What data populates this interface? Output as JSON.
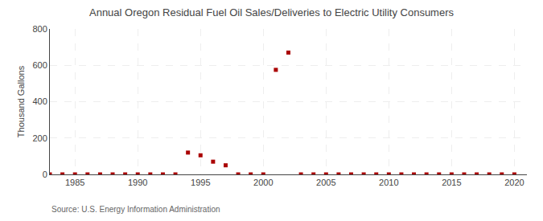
{
  "chart_data": {
    "type": "scatter",
    "title": "Annual Oregon Residual Fuel Oil Sales/Deliveries to Electric Utility Consumers",
    "ylabel": "Thousand Gallons",
    "source": "Source: U.S. Energy Information Administration",
    "x": [
      1983,
      1984,
      1985,
      1986,
      1987,
      1988,
      1989,
      1990,
      1991,
      1992,
      1993,
      1994,
      1995,
      1996,
      1997,
      1998,
      1999,
      2000,
      2001,
      2002,
      2003,
      2004,
      2005,
      2006,
      2007,
      2008,
      2009,
      2010,
      2011,
      2012,
      2013,
      2014,
      2015,
      2016,
      2017,
      2018,
      2019,
      2020
    ],
    "values": [
      0,
      0,
      0,
      0,
      0,
      0,
      0,
      0,
      0,
      0,
      0,
      120,
      105,
      70,
      50,
      0,
      0,
      0,
      575,
      670,
      0,
      0,
      0,
      0,
      0,
      0,
      0,
      0,
      0,
      0,
      0,
      0,
      0,
      0,
      0,
      0,
      0,
      0
    ],
    "color": "#aa0000",
    "marker": "square",
    "xlim": [
      1983,
      2021
    ],
    "xticks": [
      1985,
      1990,
      1995,
      2000,
      2005,
      2010,
      2015,
      2020
    ],
    "ylim": [
      0,
      800
    ],
    "yticks": [
      0,
      200,
      400,
      600,
      800
    ],
    "grid": true
  }
}
